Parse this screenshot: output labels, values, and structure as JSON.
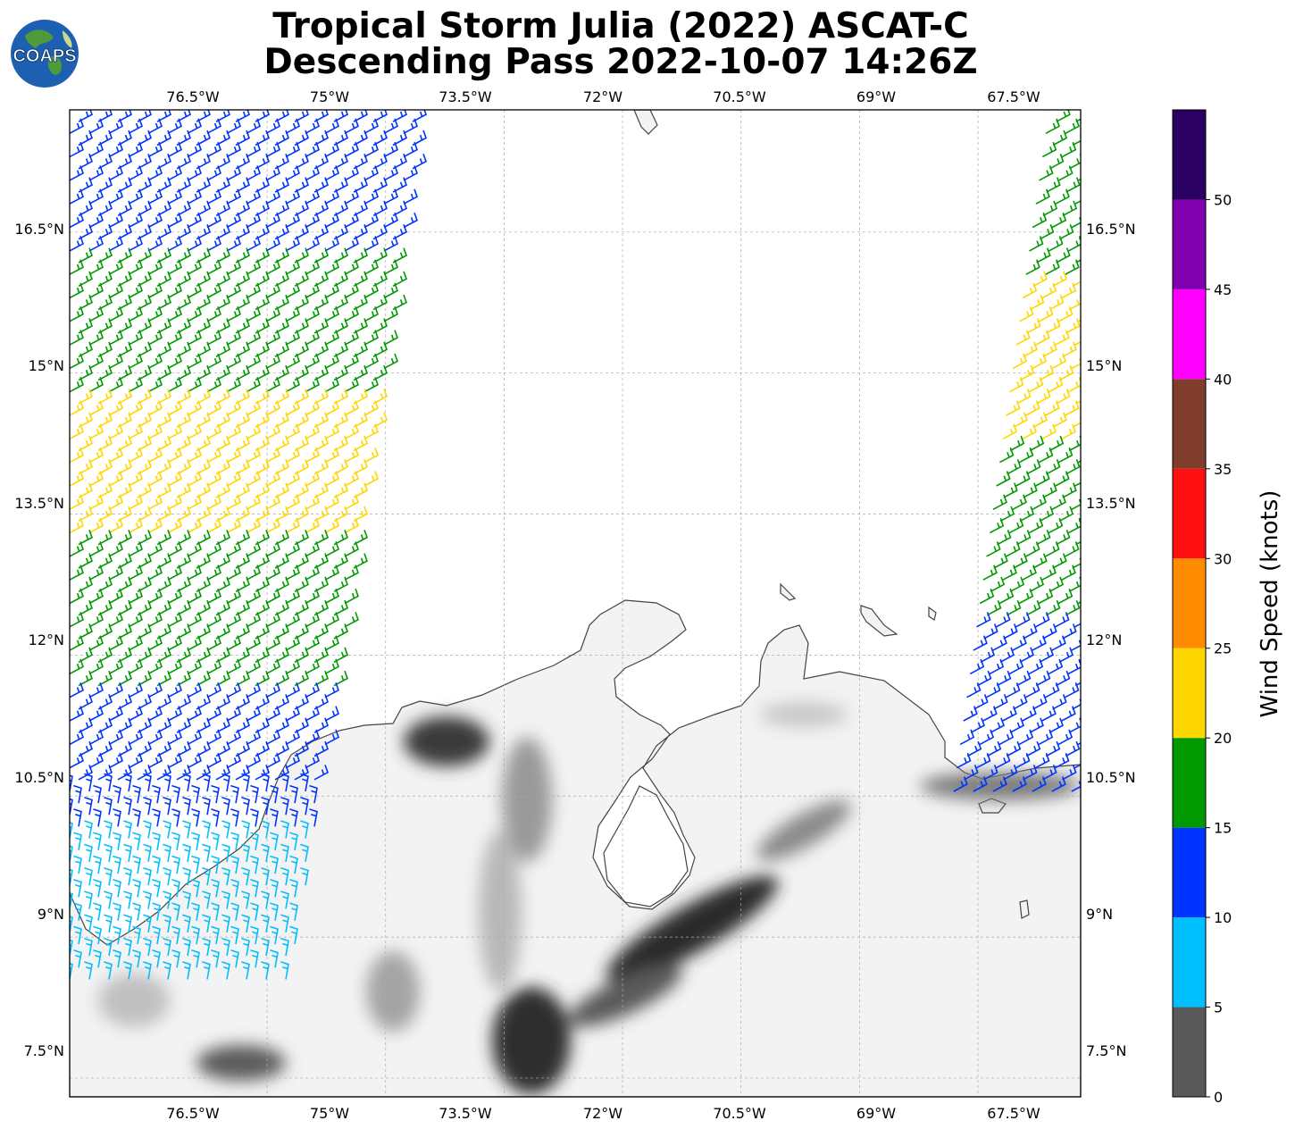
{
  "title": {
    "line1": "Tropical Storm Julia (2022) ASCAT-C",
    "line2": "Descending Pass 2022-10-07 14:26Z"
  },
  "logo": {
    "text": "COAPS",
    "icon": "globe-logo-icon"
  },
  "map": {
    "lon_range": [
      -79,
      -66.2
    ],
    "lat_range": [
      7.3,
      17.8
    ],
    "lon_ticks": [
      "76.5°W",
      "75°W",
      "73.5°W",
      "72°W",
      "70.5°W",
      "69°W",
      "67.5°W"
    ],
    "lon_tick_values": [
      -76.5,
      -75,
      -73.5,
      -72,
      -70.5,
      -69,
      -67.5
    ],
    "lat_ticks": [
      "16.5°N",
      "15°N",
      "13.5°N",
      "12°N",
      "10.5°N",
      "9°N",
      "7.5°N"
    ],
    "lat_tick_values": [
      16.5,
      15,
      13.5,
      12,
      10.5,
      9,
      7.5
    ],
    "grid": true,
    "terrain": "grayscale topography shading over land",
    "coastline_color": "#444444"
  },
  "colorbar": {
    "label": "Wind Speed (knots)",
    "tick_labels": [
      "0",
      "5",
      "10",
      "15",
      "20",
      "25",
      "30",
      "35",
      "40",
      "45",
      "50"
    ],
    "bins": [
      {
        "min": 0,
        "max": 5,
        "color": "#595959"
      },
      {
        "min": 5,
        "max": 10,
        "color": "#00bfff"
      },
      {
        "min": 10,
        "max": 15,
        "color": "#0033ff"
      },
      {
        "min": 15,
        "max": 20,
        "color": "#009900"
      },
      {
        "min": 20,
        "max": 25,
        "color": "#ffd700"
      },
      {
        "min": 25,
        "max": 30,
        "color": "#ff8c00"
      },
      {
        "min": 30,
        "max": 35,
        "color": "#ff1010"
      },
      {
        "min": 35,
        "max": 40,
        "color": "#803d2b"
      },
      {
        "min": 40,
        "max": 45,
        "color": "#ff00ff"
      },
      {
        "min": 45,
        "max": 50,
        "color": "#8000b0"
      },
      {
        "min": 50,
        "max": 55,
        "color": "#2a0060"
      }
    ]
  },
  "chart_data": {
    "type": "wind-barb swath map",
    "swaths": [
      {
        "name": "west swath",
        "lon_range": [
          -79,
          -74.5
        ],
        "lat_range": [
          8.5,
          17.8
        ],
        "speed_bands_north_to_south": [
          "10-15",
          "15-20",
          "20-25",
          "15-20",
          "10-15",
          "5-10"
        ]
      },
      {
        "name": "east swath",
        "lon_range": [
          -67.8,
          -66.2
        ],
        "lat_range": [
          10.6,
          17.8
        ],
        "speed_bands_north_to_south": [
          "15-20",
          "20-25",
          "15-20",
          "10-15"
        ]
      }
    ]
  }
}
